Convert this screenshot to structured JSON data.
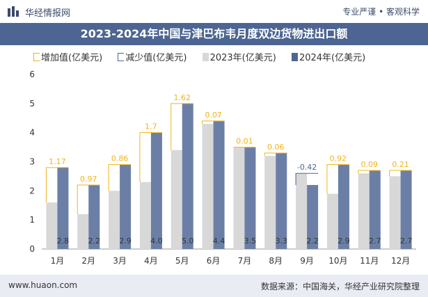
{
  "header": {
    "site_name": "华经情报网",
    "slogan": "专业严谨 • 客观科学",
    "logo_icon": "bar-logo-icon"
  },
  "title": "2023-2024年中国与津巴布韦月度双边货物进出口额",
  "legend": {
    "increase": "增加值(亿美元)",
    "decrease": "减少值(亿美元)",
    "y2023": "2023年(亿美元)",
    "y2024": "2024年(亿美元)"
  },
  "footer": {
    "url": "www.huaon.com",
    "source": "数据来源：中国海关，华经产业研究院整理"
  },
  "colors": {
    "bar_2023": "#d8d8d8",
    "bar_2024": "#6b7fa6",
    "increase": "#f2b318",
    "decrease": "#4d6592",
    "title_bg": "#4d6592"
  },
  "chart_data": {
    "type": "bar",
    "categories": [
      "1月",
      "2月",
      "3月",
      "4月",
      "5月",
      "6月",
      "7月",
      "8月",
      "9月",
      "10月",
      "11月",
      "12月"
    ],
    "series": [
      {
        "name": "2023年(亿美元)",
        "values": [
          1.6,
          1.2,
          2.0,
          2.3,
          3.4,
          4.3,
          3.5,
          3.2,
          2.6,
          1.9,
          2.6,
          2.5
        ]
      },
      {
        "name": "2024年(亿美元)",
        "values": [
          2.8,
          2.2,
          2.9,
          4.0,
          5.0,
          4.4,
          3.5,
          3.3,
          2.2,
          2.9,
          2.7,
          2.7
        ]
      }
    ],
    "bar_labels_2024": [
      "2.8",
      "2.2",
      "2.9",
      "4.0",
      "5.0",
      "4.4",
      "3.5",
      "3.3",
      "2.2",
      "2.9",
      "2.7",
      "2.7"
    ],
    "change": [
      {
        "label": "1.17",
        "direction": "increase"
      },
      {
        "label": "0.97",
        "direction": "increase"
      },
      {
        "label": "0.86",
        "direction": "increase"
      },
      {
        "label": "1.7",
        "direction": "increase"
      },
      {
        "label": "1.62",
        "direction": "increase"
      },
      {
        "label": "0.07",
        "direction": "increase"
      },
      {
        "label": "0.01",
        "direction": "increase"
      },
      {
        "label": "0.06",
        "direction": "increase"
      },
      {
        "label": "-0.42",
        "direction": "decrease"
      },
      {
        "label": "0.92",
        "direction": "increase"
      },
      {
        "label": "0.09",
        "direction": "increase"
      },
      {
        "label": "0.21",
        "direction": "increase"
      }
    ],
    "y_ticks": [
      "0",
      "1",
      "2",
      "3",
      "4",
      "5",
      "6"
    ],
    "ylim": [
      0,
      6
    ],
    "grid": false
  }
}
